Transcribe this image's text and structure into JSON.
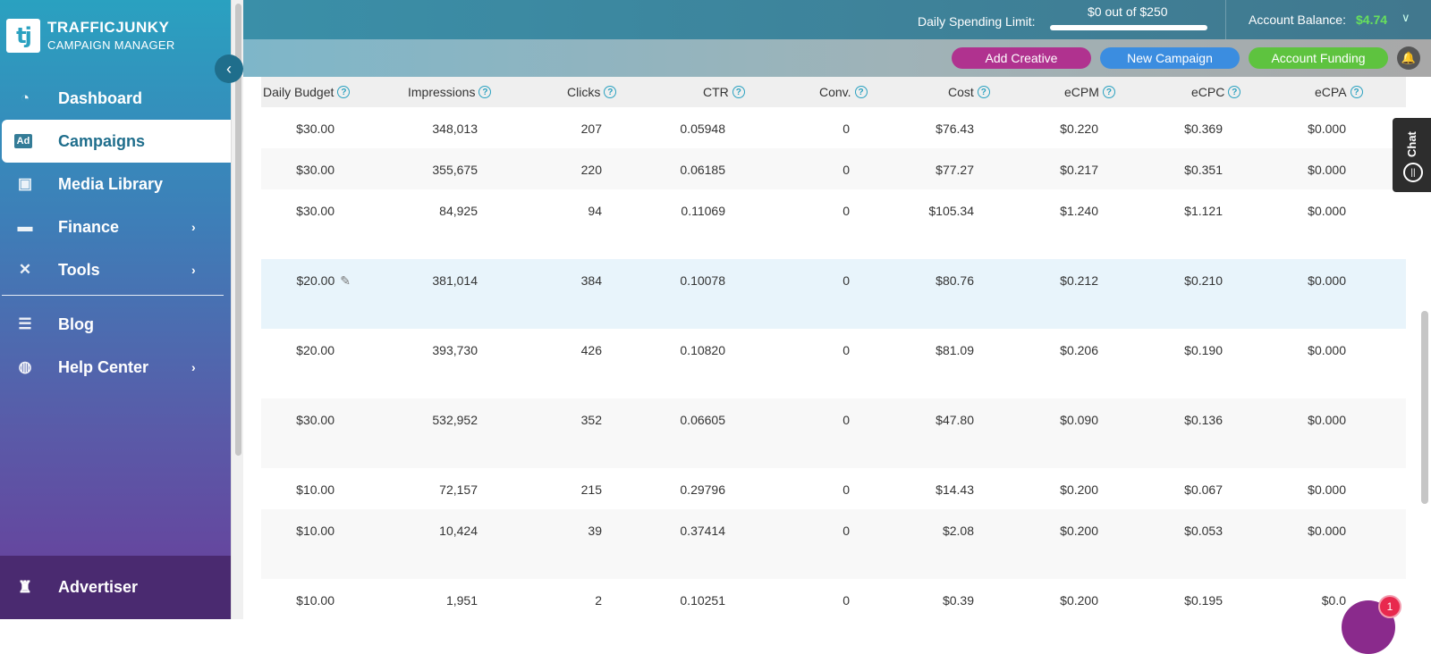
{
  "brand": {
    "title": "TRAFFICJUNKY",
    "subtitle": "CAMPAIGN MANAGER",
    "mark": "tj"
  },
  "sidebar": {
    "items": [
      {
        "label": "Dashboard",
        "icon": "dashboard-icon",
        "glyph": "◔"
      },
      {
        "label": "Campaigns",
        "icon": "ad-icon",
        "glyph": "Ad"
      },
      {
        "label": "Media Library",
        "icon": "media-icon",
        "glyph": "▣"
      },
      {
        "label": "Finance",
        "icon": "money-icon",
        "glyph": "▬"
      },
      {
        "label": "Tools",
        "icon": "tools-icon",
        "glyph": "✕"
      },
      {
        "label": "Blog",
        "icon": "blog-icon",
        "glyph": "☰"
      },
      {
        "label": "Help Center",
        "icon": "lifebuoy-icon",
        "glyph": "◍"
      }
    ],
    "footer": {
      "label": "Advertiser",
      "glyph": "♜"
    }
  },
  "topbar": {
    "spending_label": "Daily Spending Limit:",
    "spending_value": "$0 out of $250",
    "balance_label": "Account Balance:",
    "balance_value": "$4.74"
  },
  "actions": {
    "add_creative": "Add Creative",
    "new_campaign": "New Campaign",
    "account_funding": "Account Funding"
  },
  "table": {
    "headers": [
      "Daily Budget",
      "Impressions",
      "Clicks",
      "CTR",
      "Conv.",
      "Cost",
      "eCPM",
      "eCPC",
      "eCPA"
    ],
    "rows": [
      [
        "$30.00",
        "348,013",
        "207",
        "0.05948",
        "0",
        "$76.43",
        "$0.220",
        "$0.369",
        "$0.000"
      ],
      [
        "$30.00",
        "355,675",
        "220",
        "0.06185",
        "0",
        "$77.27",
        "$0.217",
        "$0.351",
        "$0.000"
      ],
      [
        "$30.00",
        "84,925",
        "94",
        "0.11069",
        "0",
        "$105.34",
        "$1.240",
        "$1.121",
        "$0.000"
      ],
      [
        "$20.00",
        "381,014",
        "384",
        "0.10078",
        "0",
        "$80.76",
        "$0.212",
        "$0.210",
        "$0.000"
      ],
      [
        "$20.00",
        "393,730",
        "426",
        "0.10820",
        "0",
        "$81.09",
        "$0.206",
        "$0.190",
        "$0.000"
      ],
      [
        "$30.00",
        "532,952",
        "352",
        "0.06605",
        "0",
        "$47.80",
        "$0.090",
        "$0.136",
        "$0.000"
      ],
      [
        "$10.00",
        "72,157",
        "215",
        "0.29796",
        "0",
        "$14.43",
        "$0.200",
        "$0.067",
        "$0.000"
      ],
      [
        "$10.00",
        "10,424",
        "39",
        "0.37414",
        "0",
        "$2.08",
        "$0.200",
        "$0.053",
        "$0.000"
      ],
      [
        "$10.00",
        "1,951",
        "2",
        "0.10251",
        "0",
        "$0.39",
        "$0.200",
        "$0.195",
        "$0.0"
      ]
    ]
  },
  "chat": {
    "label": "Chat"
  },
  "notifications": {
    "count": "1"
  },
  "colors": {
    "accent": "#2aa1c0",
    "balance": "#67e05c",
    "add_creative": "#b0328f",
    "new_campaign": "#3b8de0",
    "account_funding": "#5ec33f"
  }
}
